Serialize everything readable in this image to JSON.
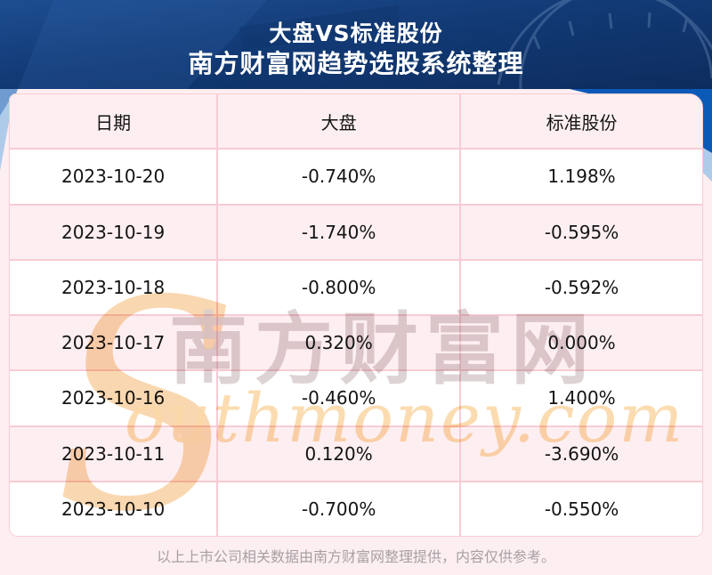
{
  "header": {
    "title": "大盘VS标准股份",
    "subtitle": "南方财富网趋势选股系统整理"
  },
  "table": {
    "headers": [
      "日期",
      "大盘",
      "标准股份"
    ],
    "rows": [
      [
        "2023-10-20",
        "-0.740%",
        "1.198%"
      ],
      [
        "2023-10-19",
        "-1.740%",
        "-0.595%"
      ],
      [
        "2023-10-18",
        "-0.800%",
        "-0.592%"
      ],
      [
        "2023-10-17",
        "0.320%",
        "0.000%"
      ],
      [
        "2023-10-16",
        "-0.460%",
        "1.400%"
      ],
      [
        "2023-10-11",
        "0.120%",
        "-3.690%"
      ],
      [
        "2023-10-10",
        "-0.700%",
        "-0.550%"
      ]
    ]
  },
  "watermark": {
    "swoosh": "S",
    "cn": "南方财富网",
    "en": "outhmoney.com"
  },
  "footer": {
    "note": "以上上市公司相关数据由南方财富网整理提供，内容仅供参考。"
  },
  "colors": {
    "header_navy": "#123a75",
    "header_navy_light": "#1d4d91",
    "header_navy_dark": "#0d2c5e",
    "band_bright_blue": "#0b5ab8",
    "band_light_blue": "#aecbea",
    "band_mid_blue": "#6f9bd0",
    "page_pink": "#fdeff1",
    "row_white": "#ffffff",
    "divider_pink": "#f8cbd4",
    "text_dark": "#141414",
    "footer_gray": "#a89fa2",
    "wm_orange": "#f8cf9e",
    "wm_orange_text": "#fbd9a8",
    "wm_gray": "#d8cccd",
    "title_white": "#ffffff"
  },
  "chart_data": {
    "type": "table",
    "title": "大盘VS标准股份",
    "subtitle": "南方财富网趋势选股系统整理",
    "columns": [
      "日期",
      "大盘",
      "标准股份"
    ],
    "categories": [
      "2023-10-20",
      "2023-10-19",
      "2023-10-18",
      "2023-10-17",
      "2023-10-16",
      "2023-10-11",
      "2023-10-10"
    ],
    "series": [
      {
        "name": "大盘",
        "values": [
          -0.74,
          -1.74,
          -0.8,
          0.32,
          -0.46,
          0.12,
          -0.7
        ],
        "unit": "%"
      },
      {
        "name": "标准股份",
        "values": [
          1.198,
          -0.595,
          -0.592,
          0.0,
          1.4,
          -3.69,
          -0.55
        ],
        "unit": "%"
      }
    ],
    "source_note": "以上上市公司相关数据由南方财富网整理提供，内容仅供参考。"
  }
}
